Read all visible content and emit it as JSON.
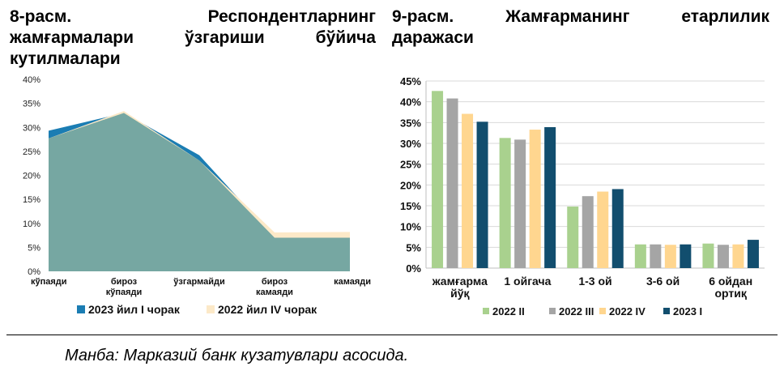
{
  "chart_data": [
    {
      "type": "area",
      "title_lines": [
        [
          "8-расм.",
          "Респондентларнинг"
        ],
        [
          "жамғармалари",
          "ўзгариши",
          "бўйича"
        ],
        [
          "кутилмалари"
        ]
      ],
      "categories": [
        [
          "кўпаяди"
        ],
        [
          "бироз",
          "кўпаяди"
        ],
        [
          "ўзгармайди"
        ],
        [
          "бироз",
          "камаяди"
        ],
        [
          "камаяди"
        ]
      ],
      "ylim": [
        0,
        40
      ],
      "y_ticks": [
        "0%",
        "5%",
        "10%",
        "15%",
        "20%",
        "25%",
        "30%",
        "35%",
        "40%"
      ],
      "series": [
        {
          "name": "2023 йил I чорак",
          "color": "#1B7DB3",
          "values": [
            29.3,
            33.0,
            24.2,
            7.0,
            7.0
          ]
        },
        {
          "name": "2022 йил IV чорак",
          "color": "#FCE9C8",
          "values": [
            27.7,
            33.4,
            23.1,
            8.1,
            8.2
          ]
        }
      ],
      "overlap_color": "#76A7A2",
      "legend_position": "bottom"
    },
    {
      "type": "bar",
      "title_lines": [
        [
          "9-расм.",
          "Жамғарманинг",
          "етарлилик"
        ],
        [
          "даражаси"
        ]
      ],
      "categories": [
        [
          "жамғарма",
          "йўқ"
        ],
        [
          "1 ойгача"
        ],
        [
          "1-3 ой"
        ],
        [
          "3-6 ой"
        ],
        [
          "6 ойдан",
          "ортиқ"
        ]
      ],
      "ylim": [
        0,
        45
      ],
      "y_ticks": [
        "0%",
        "5%",
        "10%",
        "15%",
        "20%",
        "25%",
        "30%",
        "35%",
        "40%",
        "45%"
      ],
      "series": [
        {
          "name": "2022 II",
          "color": "#A9D18E",
          "values": [
            42.6,
            31.3,
            14.8,
            5.7,
            5.9
          ]
        },
        {
          "name": "2022 III",
          "color": "#A5A5A5",
          "values": [
            40.8,
            30.9,
            17.3,
            5.7,
            5.6
          ]
        },
        {
          "name": "2022 IV",
          "color": "#FFD68F",
          "values": [
            37.1,
            33.3,
            18.4,
            5.6,
            5.7
          ]
        },
        {
          "name": "2023 I",
          "color": "#124E6E",
          "values": [
            35.2,
            33.9,
            19.0,
            5.7,
            6.8
          ]
        }
      ],
      "grid": true,
      "legend_position": "bottom"
    }
  ],
  "source": "Манба: Марказий банк кузатувлари асосида."
}
